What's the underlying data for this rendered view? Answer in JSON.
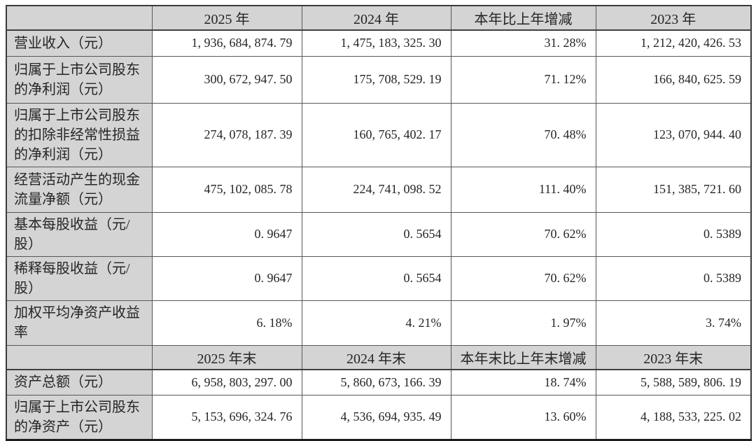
{
  "colors": {
    "header_fill": "#d4d4d4",
    "grid_line": "#575757",
    "outer_border": "#3b3b3b",
    "text": "#252525"
  },
  "table": {
    "sections": [
      {
        "corner": "",
        "columns": [
          "2025 年",
          "2024 年",
          "本年比上年增减",
          "2023 年"
        ],
        "rows": [
          {
            "label": "营业收入（元）",
            "values": [
              "1, 936, 684, 874. 79",
              "1, 475, 183, 325. 30",
              "31. 28%",
              "1, 212, 420, 426. 53"
            ]
          },
          {
            "label": "归属于上市公司股东的净利润（元）",
            "values": [
              "300, 672, 947. 50",
              "175, 708, 529. 19",
              "71. 12%",
              "166, 840, 625. 59"
            ]
          },
          {
            "label": "归属于上市公司股东的扣除非经常性损益的净利润（元）",
            "values": [
              "274, 078, 187. 39",
              "160, 765, 402. 17",
              "70. 48%",
              "123, 070, 944. 40"
            ]
          },
          {
            "label": "经营活动产生的现金流量净额（元）",
            "values": [
              "475, 102, 085. 78",
              "224, 741, 098. 52",
              "111. 40%",
              "151, 385, 721. 60"
            ]
          },
          {
            "label": "基本每股收益（元/股）",
            "values": [
              "0. 9647",
              "0. 5654",
              "70. 62%",
              "0. 5389"
            ]
          },
          {
            "label": "稀释每股收益（元/股）",
            "values": [
              "0. 9647",
              "0. 5654",
              "70. 62%",
              "0. 5389"
            ]
          },
          {
            "label": "加权平均净资产收益率",
            "values": [
              "6. 18%",
              "4. 21%",
              "1. 97%",
              "3. 74%"
            ]
          }
        ]
      },
      {
        "corner": "",
        "columns": [
          "2025 年末",
          "2024 年末",
          "本年末比上年末增减",
          "2023 年末"
        ],
        "rows": [
          {
            "label": "资产总额（元）",
            "values": [
              "6, 958, 803, 297. 00",
              "5, 860, 673, 166. 39",
              "18. 74%",
              "5, 588, 589, 806. 19"
            ]
          },
          {
            "label": "归属于上市公司股东的净资产（元）",
            "values": [
              "5, 153, 696, 324. 76",
              "4, 536, 694, 935. 49",
              "13. 60%",
              "4, 188, 533, 225. 02"
            ]
          }
        ]
      }
    ]
  }
}
